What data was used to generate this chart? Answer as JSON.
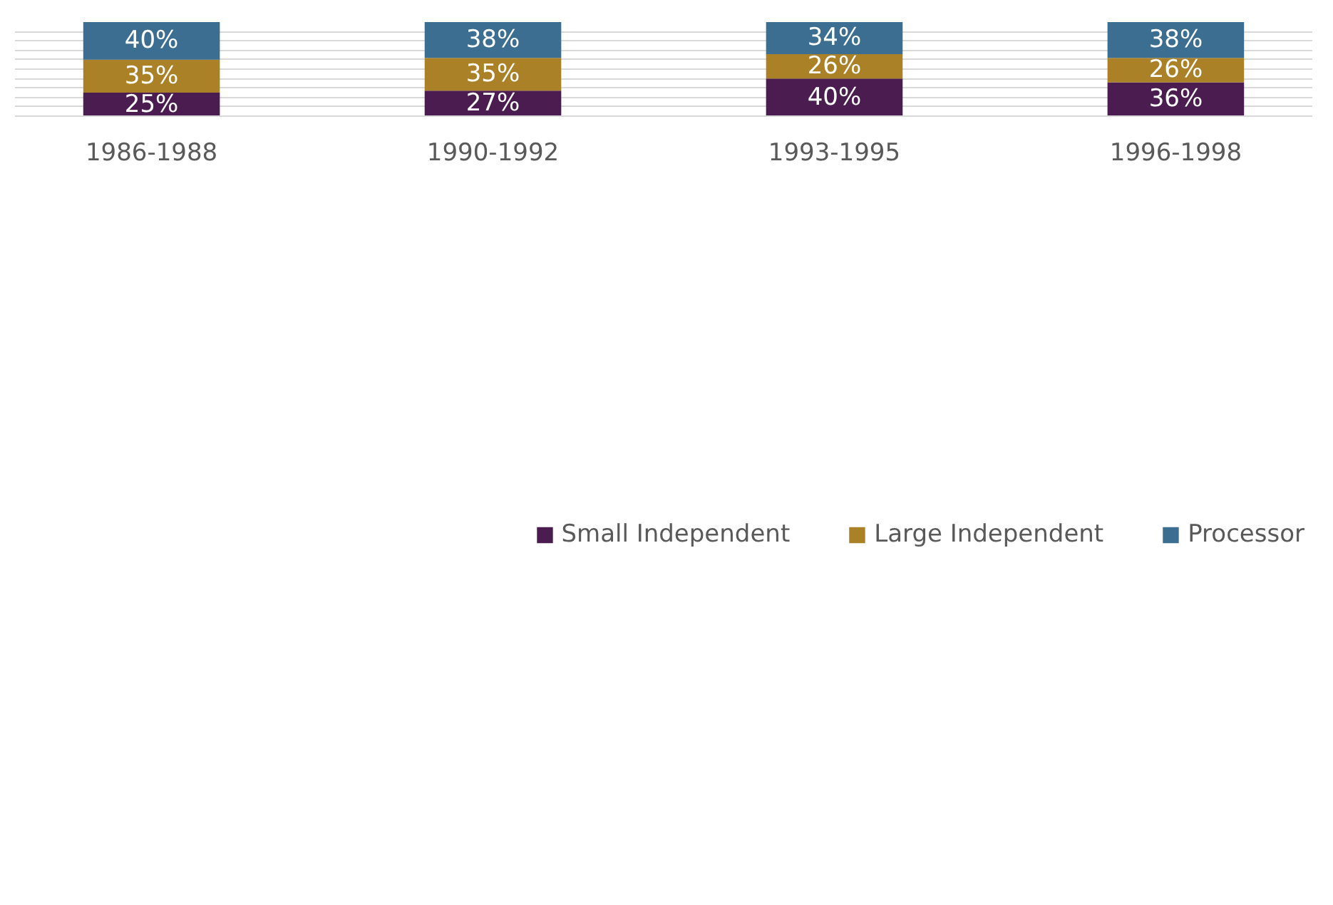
{
  "chart_data": {
    "type": "bar",
    "stacked": true,
    "categories": [
      "1986-1988",
      "1990-1992",
      "1993-1995",
      "1996-1998"
    ],
    "series": [
      {
        "name": "Small Independent",
        "color": "#4b1c4f",
        "values": [
          25,
          27,
          40,
          36
        ],
        "value_labels": [
          "25%",
          "27%",
          "40%",
          "36%"
        ]
      },
      {
        "name": "Large Independent",
        "color": "#ab8127",
        "values": [
          35,
          35,
          26,
          26
        ],
        "value_labels": [
          "35%",
          "35%",
          "26%",
          "26%"
        ]
      },
      {
        "name": "Processor",
        "color": "#3c6e91",
        "values": [
          40,
          38,
          34,
          38
        ],
        "value_labels": [
          "40%",
          "38%",
          "34%",
          "38%"
        ]
      }
    ],
    "tick_labels": "x",
    "grid": "y",
    "legend": "bottom"
  }
}
